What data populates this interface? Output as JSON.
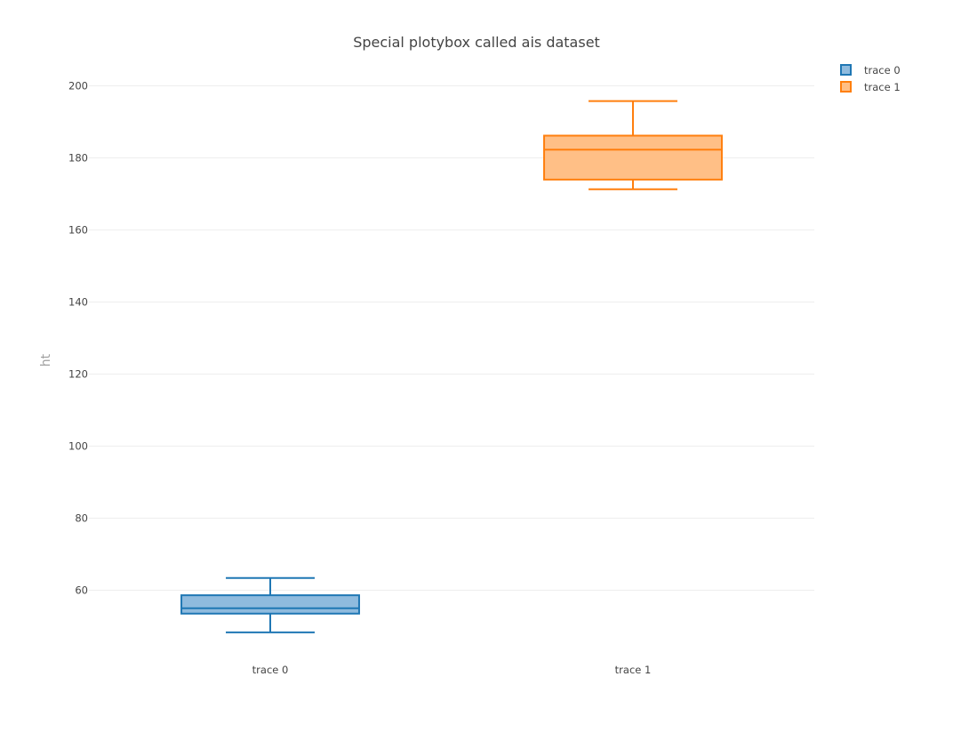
{
  "chart_data": {
    "type": "box",
    "title": "Special plotybox called ais dataset",
    "xlabel": "",
    "ylabel": "ht",
    "ylim": [
      41,
      204
    ],
    "yticks": [
      60,
      80,
      100,
      120,
      140,
      160,
      180,
      200
    ],
    "grid": true,
    "legend_position": "top-right",
    "series": [
      {
        "name": "trace 0",
        "category": "trace 0",
        "color": "#1f77b4",
        "fill": "#8fbbde",
        "min": 48.2,
        "q1": 53.4,
        "median": 54.9,
        "q3": 58.5,
        "max": 63.3
      },
      {
        "name": "trace 1",
        "category": "trace 1",
        "color": "#ff7f0e",
        "fill": "#ffbf86",
        "min": 171.2,
        "q1": 173.9,
        "median": 182.2,
        "q3": 186.1,
        "max": 195.7
      }
    ]
  }
}
